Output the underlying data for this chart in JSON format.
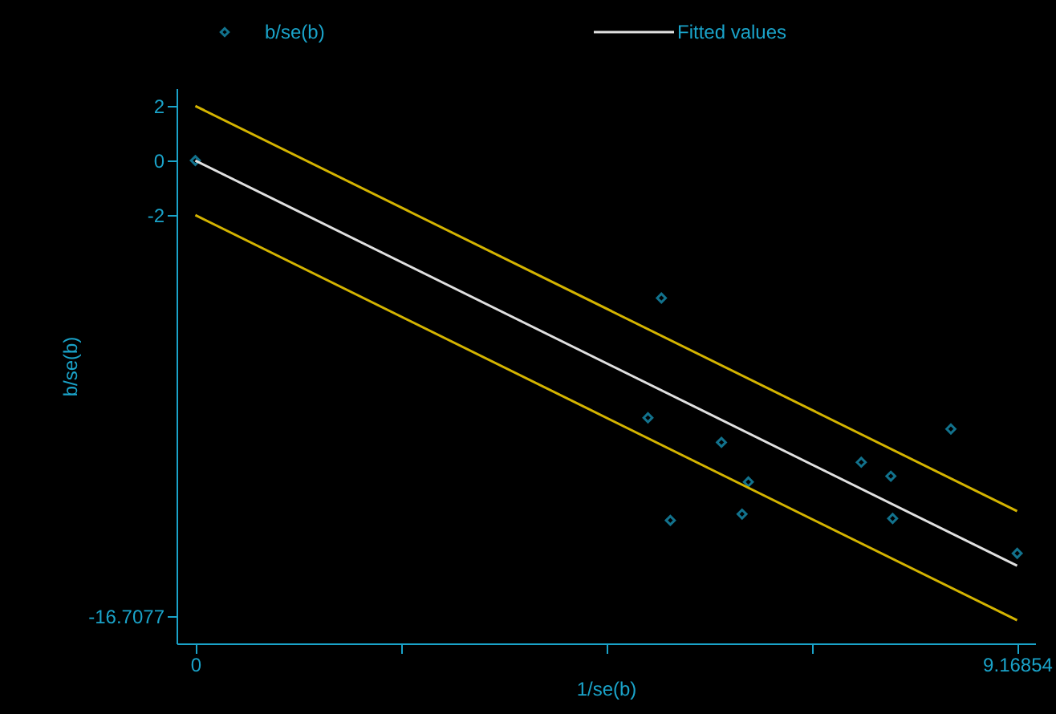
{
  "chart_data": {
    "type": "scatter",
    "xlabel": "1/se(b)",
    "ylabel": "b/se(b)",
    "legend": "top",
    "grid": false,
    "xlim": [
      -0.21,
      9.37
    ],
    "ylim": [
      -17.7,
      2.65
    ],
    "xticks": [
      0,
      {
        "value": 2.292135,
        "label": null
      },
      {
        "value": 4.58427,
        "label": null
      },
      {
        "value": 6.876405,
        "label": null
      },
      9.16854
    ],
    "yticks": [
      2,
      0,
      -2,
      -16.7077
    ],
    "series": [
      {
        "name": "b/se(b)",
        "color": "#1aa3c9",
        "marker": "diamond",
        "x": [
          0,
          5.2,
          5.05,
          5.3,
          5.87,
          6.17,
          6.1,
          7.43,
          7.76,
          7.78,
          8.43,
          9.17
        ],
        "values": [
          0,
          -5.04,
          -9.43,
          -13.19,
          -10.33,
          -11.78,
          -12.96,
          -11.06,
          -11.57,
          -13.12,
          -9.84,
          -14.4
        ]
      },
      {
        "name": "Fitted values",
        "color": "#e0e0e0",
        "type": "line",
        "marker": "none",
        "line_style": "solid",
        "x": [
          0,
          9.16854
        ],
        "values": [
          0,
          -14.85
        ]
      },
      {
        "color": "#d4b400",
        "type": "line",
        "marker": "none",
        "line_style": "solid",
        "x": [
          0,
          9.16854
        ],
        "values": [
          2,
          -12.85
        ]
      },
      {
        "color": "#d4b400",
        "type": "line",
        "marker": "none",
        "line_style": "solid",
        "x": [
          0,
          9.16854
        ],
        "values": [
          -2,
          -16.85
        ]
      }
    ]
  }
}
